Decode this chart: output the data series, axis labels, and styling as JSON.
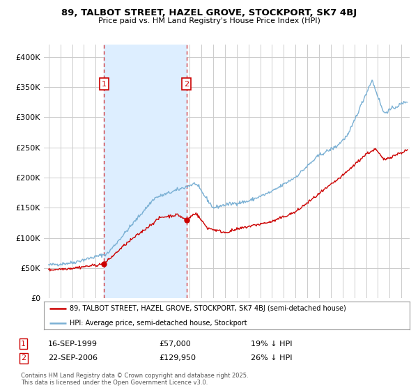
{
  "title": "89, TALBOT STREET, HAZEL GROVE, STOCKPORT, SK7 4BJ",
  "subtitle": "Price paid vs. HM Land Registry's House Price Index (HPI)",
  "legend_line1": "89, TALBOT STREET, HAZEL GROVE, STOCKPORT, SK7 4BJ (semi-detached house)",
  "legend_line2": "HPI: Average price, semi-detached house, Stockport",
  "copyright": "Contains HM Land Registry data © Crown copyright and database right 2025.\nThis data is licensed under the Open Government Licence v3.0.",
  "marker1_date": "16-SEP-1999",
  "marker1_price": "£57,000",
  "marker1_hpi": "19% ↓ HPI",
  "marker2_date": "22-SEP-2006",
  "marker2_price": "£129,950",
  "marker2_hpi": "26% ↓ HPI",
  "sold_color": "#cc0000",
  "hpi_color": "#7ab0d4",
  "shade_color": "#ddeeff",
  "background_color": "#ffffff",
  "grid_color": "#cccccc",
  "ylim": [
    0,
    420000
  ],
  "yticks": [
    0,
    50000,
    100000,
    150000,
    200000,
    250000,
    300000,
    350000,
    400000
  ],
  "marker1_x": 1999.72,
  "marker1_y": 57000,
  "marker2_x": 2006.72,
  "marker2_y": 129950,
  "xmin": 1994.6,
  "xmax": 2025.7
}
